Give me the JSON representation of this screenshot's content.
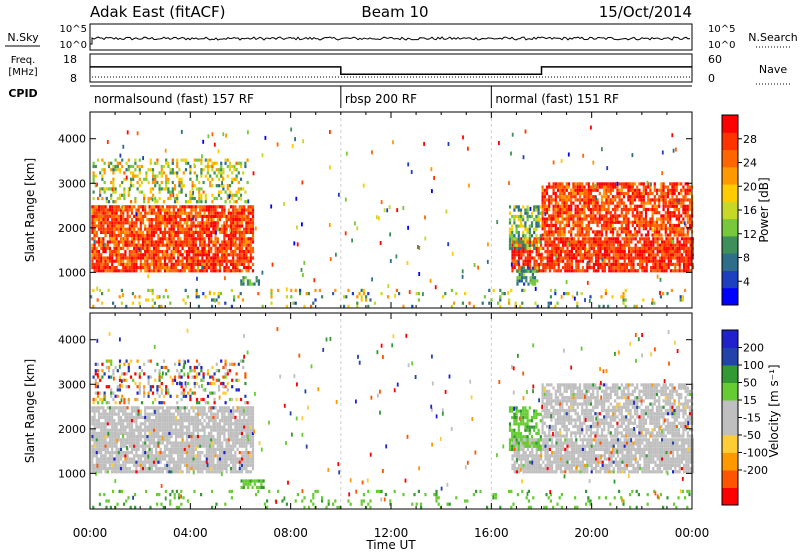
{
  "header": {
    "site": "Adak East (fitACF)",
    "beam": "Beam 10",
    "date": "15/Oct/2014"
  },
  "strips": {
    "nsky_label": "N.Sky",
    "nsearch_label": "N.Search",
    "nsky_ticks": [
      "10^5",
      "10^0"
    ],
    "nsearch_ticks": [
      "10^5",
      "10^0"
    ],
    "freq_label_1": "Freq.",
    "freq_label_2": "[MHz]",
    "freq_ticks": [
      "18",
      "8"
    ],
    "nave_label": "Nave",
    "nave_ticks": [
      "60",
      "0"
    ],
    "cpid_label": "CPID",
    "cpid_segments": [
      {
        "label": "normalsound (fast) 157 RF",
        "start_h": 0,
        "end_h": 10
      },
      {
        "label": "rbsp 200 RF",
        "start_h": 10,
        "end_h": 16
      },
      {
        "label": "normal (fast) 151 RF",
        "start_h": 16,
        "end_h": 24
      }
    ],
    "freq_mhz": [
      {
        "start_h": 0,
        "end_h": 10,
        "value": 13.8
      },
      {
        "start_h": 10,
        "end_h": 18,
        "value": 11.0
      },
      {
        "start_h": 18,
        "end_h": 24,
        "value": 13.8
      }
    ]
  },
  "colors": {
    "power": [
      "#0000ff",
      "#1e40c0",
      "#2e6e8a",
      "#3f8f5a",
      "#78c83c",
      "#c8d828",
      "#ffcc00",
      "#ff9900",
      "#ff6600",
      "#ff3300",
      "#ff0000"
    ],
    "velocity": [
      "#ff0000",
      "#ff5500",
      "#ff9900",
      "#ffcc33",
      "#bfbfbf",
      "#bfbfbf",
      "#66cc33",
      "#339933",
      "#2244aa",
      "#2222cc"
    ],
    "ground": "#bfbfbf"
  },
  "chart_data": [
    {
      "type": "heatmap",
      "name": "power",
      "ylabel": "Slant Range [km]",
      "xlim": [
        0,
        24
      ],
      "ylim": [
        200,
        4600
      ],
      "yticks": [
        "1000",
        "2000",
        "3000",
        "4000"
      ],
      "colorbar_label": "Power [dB]",
      "colorbar_ticks": [
        "4",
        "8",
        "12",
        "16",
        "20",
        "24",
        "28"
      ],
      "colorbar_range": [
        0,
        32
      ],
      "regions": [
        {
          "t0": 0.05,
          "t1": 6.5,
          "r0": 1000,
          "r1": 2450,
          "mean": 27,
          "spread": 5,
          "density": 0.85
        },
        {
          "t0": 0.1,
          "t1": 6.3,
          "r0": 2550,
          "r1": 3500,
          "mean": 16,
          "spread": 8,
          "density": 0.35
        },
        {
          "t0": 5.9,
          "t1": 6.7,
          "r0": 700,
          "r1": 900,
          "mean": 10,
          "spread": 4,
          "density": 0.6
        },
        {
          "t0": 16.8,
          "t1": 24,
          "r0": 1000,
          "r1": 1750,
          "mean": 28,
          "spread": 4,
          "density": 0.85
        },
        {
          "t0": 18.0,
          "t1": 24,
          "r0": 1800,
          "r1": 2950,
          "mean": 27,
          "spread": 5,
          "density": 0.75
        },
        {
          "t0": 16.7,
          "t1": 18.0,
          "r0": 1500,
          "r1": 2450,
          "mean": 13,
          "spread": 7,
          "density": 0.6
        },
        {
          "t0": 17.0,
          "t1": 17.8,
          "r0": 700,
          "r1": 1100,
          "mean": 10,
          "spread": 5,
          "density": 0.6
        },
        {
          "t0": 0,
          "t1": 24,
          "r0": 200,
          "r1": 600,
          "mean": 14,
          "spread": 10,
          "density": 0.12
        }
      ]
    },
    {
      "type": "heatmap",
      "name": "velocity",
      "ylabel": "Slant Range [km]",
      "xlabel": "Time UT",
      "xlim": [
        0,
        24
      ],
      "ylim": [
        200,
        4600
      ],
      "xticks": [
        "00:00",
        "04:00",
        "08:00",
        "12:00",
        "16:00",
        "20:00",
        "00:00"
      ],
      "yticks": [
        "1000",
        "2000",
        "3000",
        "4000"
      ],
      "colorbar_label": "Velocity [m s⁻¹]",
      "colorbar_ticks": [
        "200",
        "100",
        "50",
        "15",
        "-15",
        "-50",
        "-100",
        "-200"
      ],
      "regions": [
        {
          "t0": 0.05,
          "t1": 6.5,
          "r0": 1000,
          "r1": 2450,
          "kind": "ground",
          "density": 0.85
        },
        {
          "t0": 0.1,
          "t1": 6.3,
          "r0": 2550,
          "r1": 3500,
          "kind": "mixed",
          "density": 0.3
        },
        {
          "t0": 6.0,
          "t1": 6.9,
          "r0": 650,
          "r1": 850,
          "kind": "green",
          "density": 0.8
        },
        {
          "t0": 16.8,
          "t1": 24,
          "r0": 1000,
          "r1": 1750,
          "kind": "ground",
          "density": 0.85
        },
        {
          "t0": 18.0,
          "t1": 24,
          "r0": 1800,
          "r1": 2950,
          "kind": "ground",
          "density": 0.75
        },
        {
          "t0": 16.7,
          "t1": 18.0,
          "r0": 1500,
          "r1": 2450,
          "kind": "green",
          "density": 0.6
        },
        {
          "t0": 0,
          "t1": 24,
          "r0": 200,
          "r1": 600,
          "kind": "green",
          "density": 0.12
        }
      ]
    }
  ]
}
